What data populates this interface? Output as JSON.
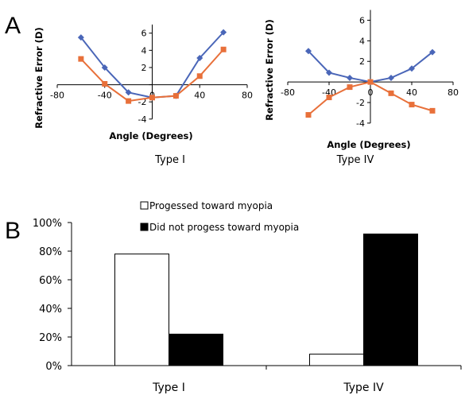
{
  "panels": {
    "a_label": "A",
    "b_label": "B"
  },
  "chart_data": [
    {
      "type": "line",
      "caption": "Type I",
      "xlabel": "Angle (Degrees)",
      "ylabel": "Refractive Error (D)",
      "xlim": [
        -80,
        80
      ],
      "ylim": [
        -4,
        7
      ],
      "xticks": [
        -80,
        -40,
        0,
        40,
        80
      ],
      "xtick_labels": [
        "-80",
        "-40",
        "0",
        "40",
        "80"
      ],
      "yticks": [
        -4,
        -2,
        0,
        2,
        4,
        6
      ],
      "ytick_labels": [
        "-4",
        "-2",
        "0",
        "2",
        "4",
        "6"
      ],
      "series": [
        {
          "color": "#4a66b8",
          "marker": "diamond",
          "x": [
            -60,
            -40,
            -20,
            0,
            20,
            40,
            60
          ],
          "y": [
            5.5,
            2.0,
            -0.9,
            -1.5,
            -1.3,
            3.1,
            6.1
          ]
        },
        {
          "color": "#e8703a",
          "marker": "square",
          "x": [
            -60,
            -40,
            -20,
            0,
            20,
            40,
            60
          ],
          "y": [
            3.0,
            0.1,
            -1.9,
            -1.5,
            -1.3,
            1.0,
            4.1
          ]
        }
      ]
    },
    {
      "type": "line",
      "caption": "Type IV",
      "xlabel": "Angle (Degrees)",
      "ylabel": "Refractive Error (D)",
      "xlim": [
        -80,
        80
      ],
      "ylim": [
        -4,
        7
      ],
      "xticks": [
        -80,
        -40,
        0,
        40,
        80
      ],
      "xtick_labels": [
        "-80",
        "-40",
        "0",
        "40",
        "80"
      ],
      "yticks": [
        -4,
        -2,
        0,
        2,
        4,
        6
      ],
      "ytick_labels": [
        "-4",
        "-2",
        "0",
        "2",
        "4",
        "6"
      ],
      "series": [
        {
          "color": "#4a66b8",
          "marker": "diamond",
          "x": [
            -60,
            -40,
            -20,
            0,
            20,
            40,
            60
          ],
          "y": [
            3.0,
            0.9,
            0.4,
            0.0,
            0.4,
            1.3,
            2.9
          ]
        },
        {
          "color": "#e8703a",
          "marker": "square",
          "x": [
            -60,
            -40,
            -20,
            0,
            20,
            40,
            60
          ],
          "y": [
            -3.2,
            -1.5,
            -0.5,
            0.0,
            -1.1,
            -2.2,
            -2.8
          ]
        }
      ]
    },
    {
      "type": "bar",
      "categories": [
        "Type I",
        "Type IV"
      ],
      "yticks": [
        0,
        20,
        40,
        60,
        80,
        100
      ],
      "ytick_labels": [
        "0%",
        "20%",
        "40%",
        "60%",
        "80%",
        "100%"
      ],
      "ylim": [
        0,
        100
      ],
      "legend_position": "top",
      "series": [
        {
          "name": "Progessed toward myopia",
          "fill": "#ffffff",
          "values": [
            78,
            8
          ]
        },
        {
          "name": "Did not progess toward myopia",
          "fill": "#000000",
          "values": [
            22,
            92
          ]
        }
      ]
    }
  ]
}
